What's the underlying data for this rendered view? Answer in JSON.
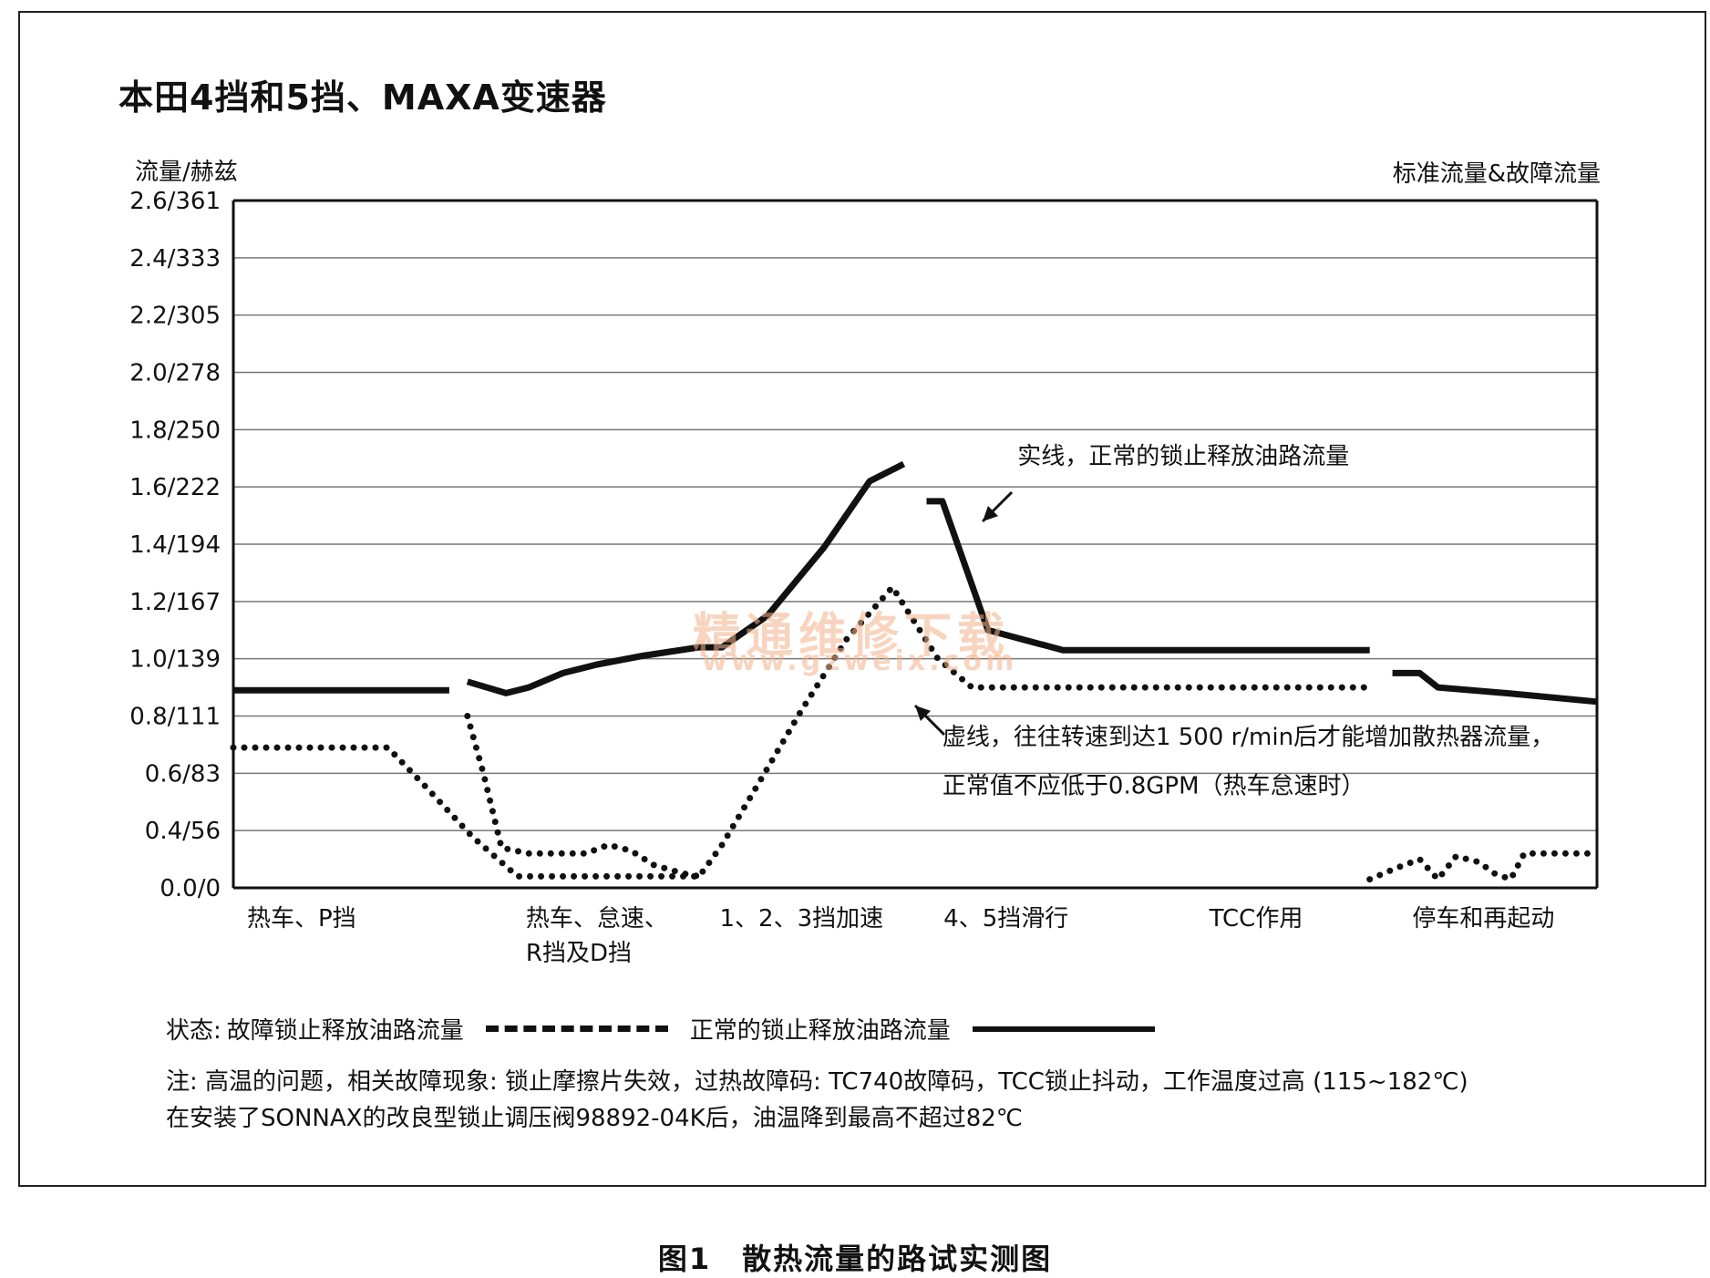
{
  "title": "本田4挡和5挡、MAXA变速器",
  "y_axis_label": "流量/赫兹",
  "right_label": "标准流量&故障流量",
  "watermark": {
    "cn": "精通维修下载",
    "url": "www.gzweix.com"
  },
  "legend": {
    "prefix": "状态:",
    "fault_label": "故障锁止释放油路流量",
    "normal_label": "正常的锁止释放油路流量"
  },
  "notes": [
    "注: 高温的问题，相关故障现象: 锁止摩擦片失效，过热故障码: TC740故障码，TCC锁止抖动，工作温度过高 (115~182℃)",
    "在安装了SONNAX的改良型锁止调压阀98892-04K后，油温降到最高不超过82℃"
  ],
  "caption": "图1　散热流量的路试实测图",
  "chart_data": {
    "type": "line",
    "ylim": [
      0,
      2.4
    ],
    "y_ticks": [
      {
        "value": 0.0,
        "label": "0.0/0"
      },
      {
        "value": 0.2,
        "label": "0.4/56"
      },
      {
        "value": 0.4,
        "label": "0.6/83"
      },
      {
        "value": 0.6,
        "label": "0.8/111"
      },
      {
        "value": 0.8,
        "label": "1.0/139"
      },
      {
        "value": 1.0,
        "label": "1.2/167"
      },
      {
        "value": 1.2,
        "label": "1.4/194"
      },
      {
        "value": 1.4,
        "label": "1.6/222"
      },
      {
        "value": 1.6,
        "label": "1.8/250"
      },
      {
        "value": 1.8,
        "label": "2.0/278"
      },
      {
        "value": 2.0,
        "label": "2.2/305"
      },
      {
        "value": 2.2,
        "label": "2.4/333"
      },
      {
        "value": 2.4,
        "label": "2.6/361"
      }
    ],
    "grid": true,
    "xlim": [
      0,
      6
    ],
    "x_categories": [
      {
        "label": "热车、P挡",
        "x": 0.3
      },
      {
        "label": "热车、怠速、R挡及D挡",
        "x": 1.6
      },
      {
        "label": "1、2、3挡加速",
        "x": 2.5
      },
      {
        "label": "4、5挡滑行",
        "x": 3.4
      },
      {
        "label": "TCC作用",
        "x": 4.5
      },
      {
        "label": "停车和再起动",
        "x": 5.5
      }
    ],
    "series": [
      {
        "name": "正常的锁止释放油路流量",
        "style": "solid",
        "segments": [
          [
            [
              0.0,
              0.69
            ],
            [
              0.95,
              0.69
            ]
          ],
          [
            [
              1.03,
              0.72
            ],
            [
              1.2,
              0.68
            ],
            [
              1.3,
              0.7
            ],
            [
              1.45,
              0.75
            ],
            [
              1.6,
              0.78
            ],
            [
              1.8,
              0.81
            ],
            [
              2.05,
              0.84
            ],
            [
              2.15,
              0.84
            ],
            [
              2.35,
              0.95
            ],
            [
              2.6,
              1.19
            ],
            [
              2.8,
              1.42
            ],
            [
              2.95,
              1.48
            ]
          ],
          [
            [
              3.05,
              1.35
            ],
            [
              3.12,
              1.35
            ],
            [
              3.32,
              0.9
            ],
            [
              3.65,
              0.83
            ],
            [
              4.0,
              0.83
            ],
            [
              5.0,
              0.83
            ]
          ],
          [
            [
              5.1,
              0.75
            ],
            [
              5.22,
              0.75
            ],
            [
              5.3,
              0.7
            ],
            [
              5.6,
              0.68
            ],
            [
              6.0,
              0.65
            ]
          ]
        ]
      },
      {
        "name": "故障锁止释放油路流量",
        "style": "dotted",
        "segments": [
          [
            [
              0.0,
              0.49
            ],
            [
              0.68,
              0.49
            ],
            [
              0.85,
              0.35
            ],
            [
              1.05,
              0.18
            ],
            [
              1.25,
              0.04
            ],
            [
              1.45,
              0.04
            ],
            [
              1.7,
              0.04
            ],
            [
              1.9,
              0.04
            ],
            [
              2.05,
              0.04
            ],
            [
              2.15,
              0.15
            ],
            [
              2.3,
              0.35
            ],
            [
              2.5,
              0.62
            ],
            [
              2.7,
              0.87
            ],
            [
              2.9,
              1.05
            ],
            [
              3.1,
              0.8
            ],
            [
              3.25,
              0.7
            ],
            [
              4.0,
              0.7
            ],
            [
              5.0,
              0.7
            ]
          ],
          [
            [
              1.03,
              0.6
            ],
            [
              1.1,
              0.4
            ],
            [
              1.18,
              0.14
            ],
            [
              1.3,
              0.12
            ],
            [
              1.45,
              0.12
            ],
            [
              1.55,
              0.12
            ],
            [
              1.65,
              0.15
            ],
            [
              1.75,
              0.13
            ],
            [
              1.85,
              0.08
            ],
            [
              1.98,
              0.05
            ],
            [
              2.05,
              0.04
            ]
          ],
          [
            [
              5.0,
              0.03
            ],
            [
              5.12,
              0.07
            ],
            [
              5.22,
              0.1
            ],
            [
              5.3,
              0.03
            ],
            [
              5.38,
              0.11
            ],
            [
              5.48,
              0.09
            ],
            [
              5.55,
              0.05
            ],
            [
              5.62,
              0.03
            ],
            [
              5.68,
              0.12
            ],
            [
              5.8,
              0.12
            ],
            [
              6.0,
              0.12
            ]
          ]
        ]
      }
    ],
    "annotations": [
      {
        "text": "实线，正常的锁止释放油路流量",
        "x": 3.45,
        "y": 1.48
      },
      {
        "text": "虚线，往往转速到达1 500 r/min后才能增加散热器流量，",
        "x": 3.12,
        "y": 0.5
      },
      {
        "text": "正常值不应低于0.8GPM（热车怠速时）",
        "x": 3.12,
        "y": 0.33
      }
    ]
  }
}
